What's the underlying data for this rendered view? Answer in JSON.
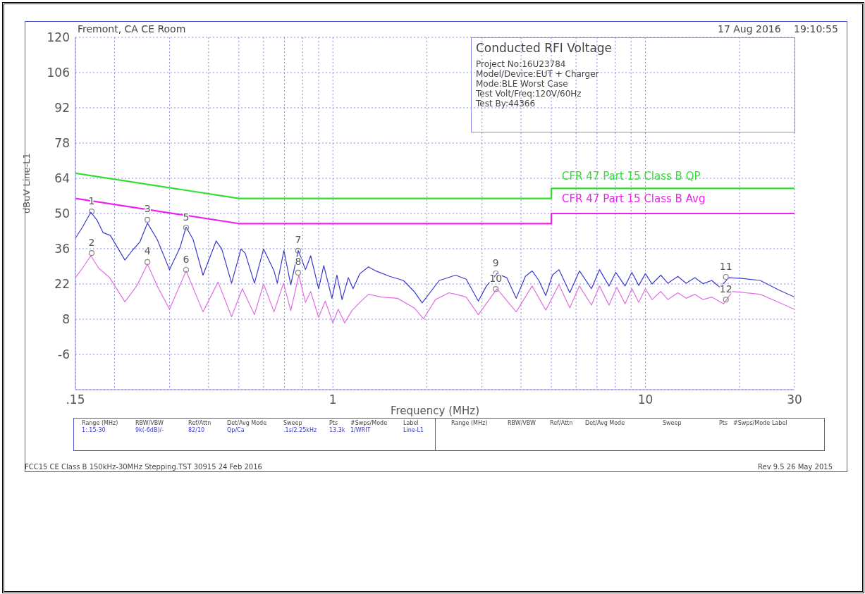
{
  "chart_data": {
    "type": "line",
    "title": "Conducted RFI Voltage",
    "xlabel": "Frequency (MHz)",
    "ylabel": "dBuV Line-L1",
    "log": "x",
    "grid": true,
    "marker": "none",
    "xlim": [
      0.15,
      30
    ],
    "ylim": [
      -20,
      120
    ],
    "xticks": [
      {
        "value": 0.15,
        "label": ".15"
      },
      {
        "value": 0.2,
        "label": null
      },
      {
        "value": 0.3,
        "label": null
      },
      {
        "value": 0.4,
        "label": null
      },
      {
        "value": 0.5,
        "label": null
      },
      {
        "value": 0.6,
        "label": null
      },
      {
        "value": 0.7,
        "label": null
      },
      {
        "value": 0.8,
        "label": null
      },
      {
        "value": 0.9,
        "label": null
      },
      1,
      {
        "value": 2,
        "label": null
      },
      {
        "value": 3,
        "label": null
      },
      {
        "value": 4,
        "label": null
      },
      {
        "value": 5,
        "label": null
      },
      {
        "value": 6,
        "label": null
      },
      {
        "value": 7,
        "label": null
      },
      {
        "value": 8,
        "label": null
      },
      {
        "value": 9,
        "label": null
      },
      10,
      {
        "value": 20,
        "label": null
      },
      30
    ],
    "yticks": [
      {
        "value": -20,
        "label": null
      },
      -6,
      8,
      22,
      36,
      50,
      64,
      78,
      92,
      106,
      120
    ],
    "series": [
      {
        "name": "CFR 47 Part 15 Class B QP",
        "color": "#33dd33",
        "x": [
          0.15,
          0.5,
          5,
          5,
          30
        ],
        "values": [
          66,
          56,
          56,
          60,
          60
        ]
      },
      {
        "name": "CFR 47 Part 15 Class B Avg",
        "color": "#ee22ee",
        "x": [
          0.15,
          0.5,
          5,
          5,
          30
        ],
        "values": [
          56,
          46,
          46,
          50,
          50
        ]
      },
      {
        "color": "#3a3acc",
        "x": [
          0.15,
          0.158,
          0.168,
          0.176,
          0.184,
          0.194,
          0.216,
          0.228,
          0.241,
          0.255,
          0.274,
          0.3,
          0.324,
          0.339,
          0.357,
          0.384,
          0.423,
          0.441,
          0.474,
          0.508,
          0.524,
          0.561,
          0.6,
          0.648,
          0.664,
          0.697,
          0.733,
          0.775,
          0.817,
          0.849,
          0.9,
          0.935,
          0.993,
          1.03,
          1.07,
          1.12,
          1.16,
          1.22,
          1.3,
          1.37,
          1.52,
          1.68,
          1.82,
          1.93,
          2.19,
          2.47,
          2.67,
          2.92,
          3.1,
          3.35,
          3.6,
          3.86,
          4.13,
          4.34,
          4.56,
          4.8,
          5.04,
          5.29,
          5.73,
          6.15,
          6.72,
          7.13,
          7.65,
          8.04,
          8.61,
          9.05,
          9.52,
          10,
          10.5,
          11.2,
          11.8,
          12.7,
          13.5,
          14.4,
          15.3,
          16.3,
          17.3,
          18.5,
          20.3,
          23.3,
          26.7,
          30
        ],
        "values": [
          40.2,
          44.6,
          50.5,
          47.3,
          42.4,
          41.3,
          31.5,
          35.3,
          38.6,
          46.2,
          39.7,
          27.7,
          36.4,
          44.6,
          39.7,
          25.5,
          39.1,
          35.9,
          22.3,
          35.9,
          34.2,
          22.3,
          35.9,
          27.2,
          22.3,
          35.3,
          21.7,
          35.3,
          27.7,
          33.2,
          20.1,
          29.3,
          16.3,
          25.5,
          15.8,
          24.5,
          20.1,
          26.1,
          28.8,
          27.2,
          25,
          23.4,
          19,
          14.5,
          23.4,
          25.5,
          23.9,
          15.2,
          21.2,
          26.1,
          24.5,
          16.3,
          25,
          27.2,
          23.4,
          17.4,
          25.5,
          27.7,
          18.5,
          27.2,
          20.1,
          27.7,
          21.2,
          26.6,
          21.2,
          26.6,
          21.4,
          26.1,
          22,
          25.5,
          22.3,
          25,
          22.3,
          24.5,
          22.1,
          23.4,
          20.7,
          24.5,
          24.2,
          23.4,
          19.6,
          16.8
        ]
      },
      {
        "color": "#e070e0",
        "x": [
          0.15,
          0.158,
          0.168,
          0.178,
          0.193,
          0.216,
          0.237,
          0.255,
          0.274,
          0.3,
          0.339,
          0.384,
          0.429,
          0.474,
          0.513,
          0.561,
          0.6,
          0.648,
          0.695,
          0.733,
          0.778,
          0.817,
          0.849,
          0.9,
          0.945,
          1,
          1.04,
          1.09,
          1.15,
          1.22,
          1.3,
          1.43,
          1.61,
          1.82,
          1.95,
          2.13,
          2.35,
          2.47,
          2.67,
          2.92,
          3.35,
          3.86,
          4.34,
          4.8,
          5.29,
          5.73,
          6.15,
          6.72,
          7.13,
          7.65,
          8.1,
          8.61,
          9.05,
          9.52,
          10,
          10.5,
          11.2,
          11.8,
          12.7,
          13.5,
          14.4,
          15.3,
          16.3,
          17.8,
          19,
          23.3,
          26.7,
          30
        ],
        "values": [
          24.5,
          28.3,
          33.2,
          28.3,
          24.5,
          14.9,
          21.7,
          29.9,
          21.2,
          12,
          27.2,
          10.9,
          22.8,
          9,
          20.1,
          9.8,
          22,
          10.9,
          22.3,
          11.4,
          25.5,
          14.7,
          19,
          8.7,
          15.2,
          6.5,
          12,
          6.5,
          11.4,
          14.7,
          17.9,
          16.8,
          16.3,
          12.5,
          8.2,
          15.8,
          18.5,
          17.9,
          16.8,
          9.8,
          20.1,
          10.9,
          21.2,
          11.6,
          21.7,
          12.5,
          21.2,
          13.6,
          21.2,
          13.6,
          20.7,
          14.1,
          20.1,
          14.7,
          20.1,
          15.8,
          19,
          15.8,
          18.5,
          16.3,
          17.9,
          15.8,
          16.8,
          14.1,
          19,
          17.9,
          14.7,
          11.9
        ]
      }
    ],
    "annotations": [
      "Fremont, CA CE Room",
      "17 Aug 2016",
      "19:10:55",
      "Project No:16U23784",
      "Model/Device:EUT + Charger",
      "Mode:BLE Worst Case",
      "Test Volt/Freq:120V/60Hz",
      "Test By:44366",
      "Range (MHz)",
      "RBW/VBW",
      "Ref/Attn",
      "Det/Avg Mode",
      "Sweep",
      "Pts",
      "#Swps/Mode",
      "Label",
      "1:.15-30",
      "9k(-6dB)/-",
      "82/10",
      "Qp/Ca",
      ".1s/2.25kHz",
      "13.3k",
      "1/WRIT",
      "Line-L1",
      "Range (MHz)",
      "RBW/VBW",
      "Ref/Attn",
      "Det/Avg Mode",
      "Sweep",
      "Pts",
      "#Swps/Mode",
      "Label",
      "FCC15 CE Class B 150kHz-30MHz Stepping.TST 30915 24 Feb 2016",
      "Rev 9.5 26 May 2015",
      {
        "text": "1",
        "x": 0.169,
        "y": 50.8
      },
      {
        "text": "2",
        "x": 0.169,
        "y": 34.3
      },
      {
        "text": "3",
        "x": 0.255,
        "y": 47.5
      },
      {
        "text": "4",
        "x": 0.255,
        "y": 30.7
      },
      {
        "text": "5",
        "x": 0.339,
        "y": 44.4
      },
      {
        "text": "6",
        "x": 0.339,
        "y": 27.6
      },
      {
        "text": "7",
        "x": 0.774,
        "y": 35.2
      },
      {
        "text": "8",
        "x": 0.774,
        "y": 26.5
      },
      {
        "text": "9",
        "x": 3.32,
        "y": 26.2
      },
      {
        "text": "10",
        "x": 3.32,
        "y": 20
      },
      {
        "text": "11",
        "x": 18.1,
        "y": 24.8
      },
      {
        "text": "12",
        "x": 18.1,
        "y": 15.8
      }
    ]
  }
}
